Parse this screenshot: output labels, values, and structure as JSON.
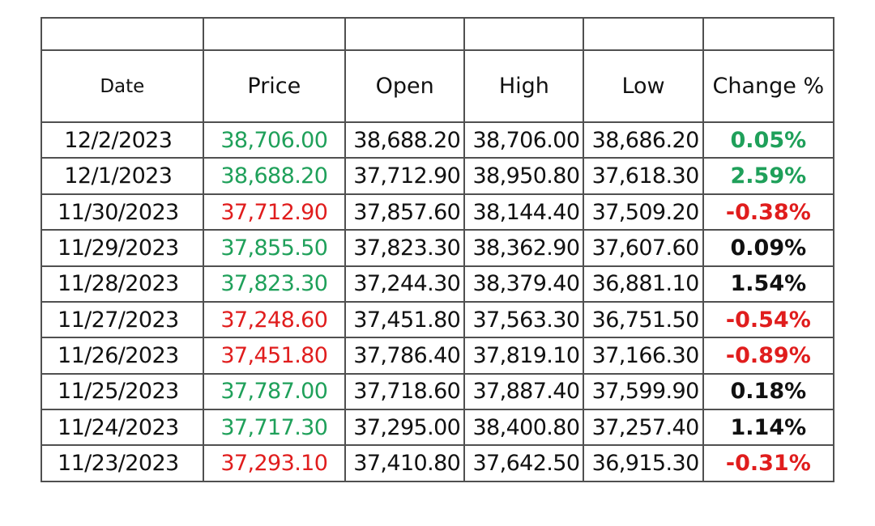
{
  "headers": [
    "Date",
    "Price",
    "Open",
    "High",
    "Low",
    "Change %"
  ],
  "colors": {
    "up": "#1fa05a",
    "down": "#e01d1d",
    "neutral": "#111111"
  },
  "rows": [
    {
      "date": "12/2/2023",
      "price": "38,706.00",
      "open": "38,688.20",
      "high": "38,706.00",
      "low": "38,686.20",
      "change": "0.05%",
      "price_color": "up",
      "change_color": "up"
    },
    {
      "date": "12/1/2023",
      "price": "38,688.20",
      "open": "37,712.90",
      "high": "38,950.80",
      "low": "37,618.30",
      "change": "2.59%",
      "price_color": "up",
      "change_color": "up"
    },
    {
      "date": "11/30/2023",
      "price": "37,712.90",
      "open": "37,857.60",
      "high": "38,144.40",
      "low": "37,509.20",
      "change": "-0.38%",
      "price_color": "down",
      "change_color": "down"
    },
    {
      "date": "11/29/2023",
      "price": "37,855.50",
      "open": "37,823.30",
      "high": "38,362.90",
      "low": "37,607.60",
      "change": "0.09%",
      "price_color": "up",
      "change_color": "neutral"
    },
    {
      "date": "11/28/2023",
      "price": "37,823.30",
      "open": "37,244.30",
      "high": "38,379.40",
      "low": "36,881.10",
      "change": "1.54%",
      "price_color": "up",
      "change_color": "neutral"
    },
    {
      "date": "11/27/2023",
      "price": "37,248.60",
      "open": "37,451.80",
      "high": "37,563.30",
      "low": "36,751.50",
      "change": "-0.54%",
      "price_color": "down",
      "change_color": "down"
    },
    {
      "date": "11/26/2023",
      "price": "37,451.80",
      "open": "37,786.40",
      "high": "37,819.10",
      "low": "37,166.30",
      "change": "-0.89%",
      "price_color": "down",
      "change_color": "down"
    },
    {
      "date": "11/25/2023",
      "price": "37,787.00",
      "open": "37,718.60",
      "high": "37,887.40",
      "low": "37,599.90",
      "change": "0.18%",
      "price_color": "up",
      "change_color": "neutral"
    },
    {
      "date": "11/24/2023",
      "price": "37,717.30",
      "open": "37,295.00",
      "high": "38,400.80",
      "low": "37,257.40",
      "change": "1.14%",
      "price_color": "up",
      "change_color": "neutral"
    },
    {
      "date": "11/23/2023",
      "price": "37,293.10",
      "open": "37,410.80",
      "high": "37,642.50",
      "low": "36,915.30",
      "change": "-0.31%",
      "price_color": "down",
      "change_color": "down"
    }
  ]
}
